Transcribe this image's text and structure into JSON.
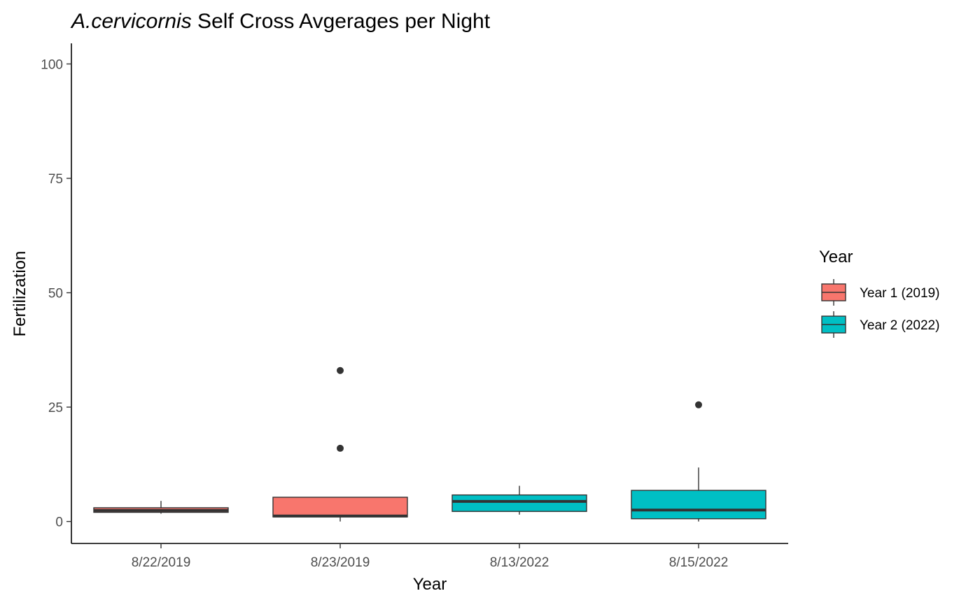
{
  "chart_data": {
    "type": "boxplot",
    "title_italic": "A.cervicornis",
    "title_rest": " Self Cross Avgerages per Night",
    "xlabel": "Year",
    "ylabel": "Fertilization",
    "ylim": [
      -4.8,
      104.5
    ],
    "yticks": [
      "0",
      "25",
      "50",
      "75",
      "100"
    ],
    "categories": [
      "8/22/2019",
      "8/23/2019",
      "8/13/2022",
      "8/15/2022"
    ],
    "boxes": [
      {
        "category": "8/22/2019",
        "series": "Year 1 (2019)",
        "min": 1.7,
        "q1": 2.0,
        "median": 2.4,
        "q3": 3.0,
        "max": 4.5,
        "outliers": []
      },
      {
        "category": "8/23/2019",
        "series": "Year 1 (2019)",
        "min": 0.0,
        "q1": 1.0,
        "median": 1.2,
        "q3": 5.3,
        "max": 5.3,
        "outliers": [
          16.0,
          33.0
        ]
      },
      {
        "category": "8/13/2022",
        "series": "Year 2 (2022)",
        "min": 1.5,
        "q1": 2.2,
        "median": 4.4,
        "q3": 5.8,
        "max": 7.8,
        "outliers": []
      },
      {
        "category": "8/15/2022",
        "series": "Year 2 (2022)",
        "min": 0.0,
        "q1": 0.6,
        "median": 2.5,
        "q3": 6.8,
        "max": 11.8,
        "outliers": [
          25.5
        ]
      }
    ],
    "legend": {
      "title": "Year",
      "position": "right",
      "items": [
        {
          "name": "Year 1 (2019)",
          "color": "#F8766D"
        },
        {
          "name": "Year 2 (2022)",
          "color": "#00BFC4"
        }
      ]
    },
    "grid": false,
    "colors": {
      "line": "#333333",
      "axis": "#000000",
      "tick_text": "#4d4d4d"
    }
  }
}
